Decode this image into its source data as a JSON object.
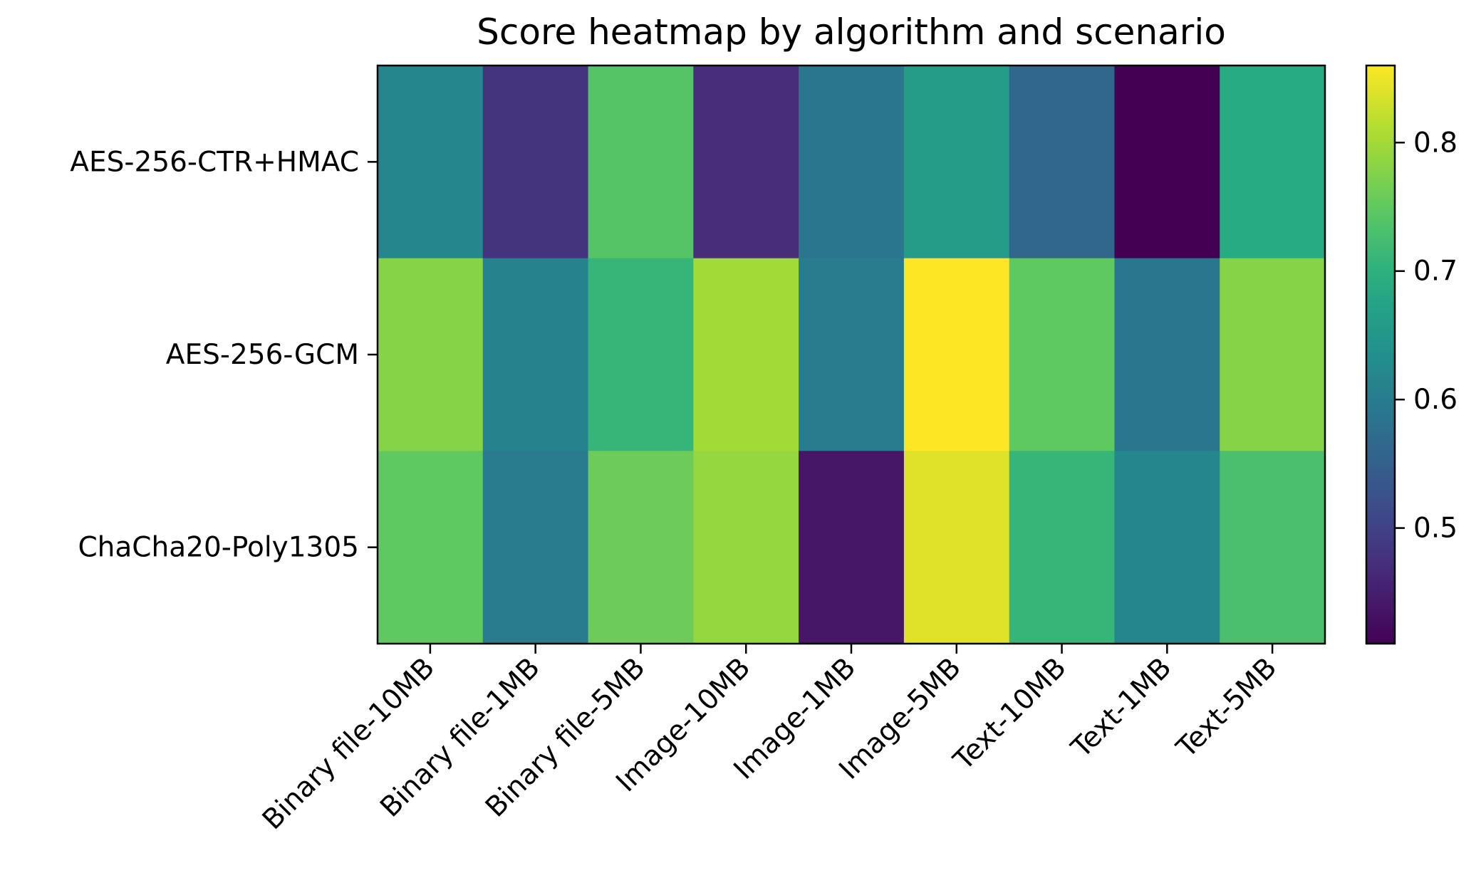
{
  "chart_data": {
    "type": "heatmap",
    "title": "Score heatmap by algorithm and scenario",
    "xlabel": "",
    "ylabel": "",
    "x_categories": [
      "Binary file-10MB",
      "Binary file-1MB",
      "Binary file-5MB",
      "Image-10MB",
      "Image-1MB",
      "Image-5MB",
      "Text-10MB",
      "Text-1MB",
      "Text-5MB"
    ],
    "y_categories": [
      "AES-256-CTR+HMAC",
      "AES-256-GCM",
      "ChaCha20-Poly1305"
    ],
    "values": [
      [
        0.62,
        0.48,
        0.74,
        0.47,
        0.59,
        0.66,
        0.56,
        0.41,
        0.69
      ],
      [
        0.78,
        0.61,
        0.71,
        0.8,
        0.6,
        0.86,
        0.75,
        0.59,
        0.78
      ],
      [
        0.75,
        0.6,
        0.76,
        0.79,
        0.44,
        0.84,
        0.71,
        0.62,
        0.73
      ]
    ],
    "colorbar": {
      "colormap": "viridis",
      "vmin": 0.41,
      "vmax": 0.86,
      "ticks": [
        0.5,
        0.6,
        0.7,
        0.8
      ],
      "tick_labels": [
        "0.5",
        "0.6",
        "0.7",
        "0.8"
      ]
    },
    "grid": false,
    "legend": "none"
  }
}
